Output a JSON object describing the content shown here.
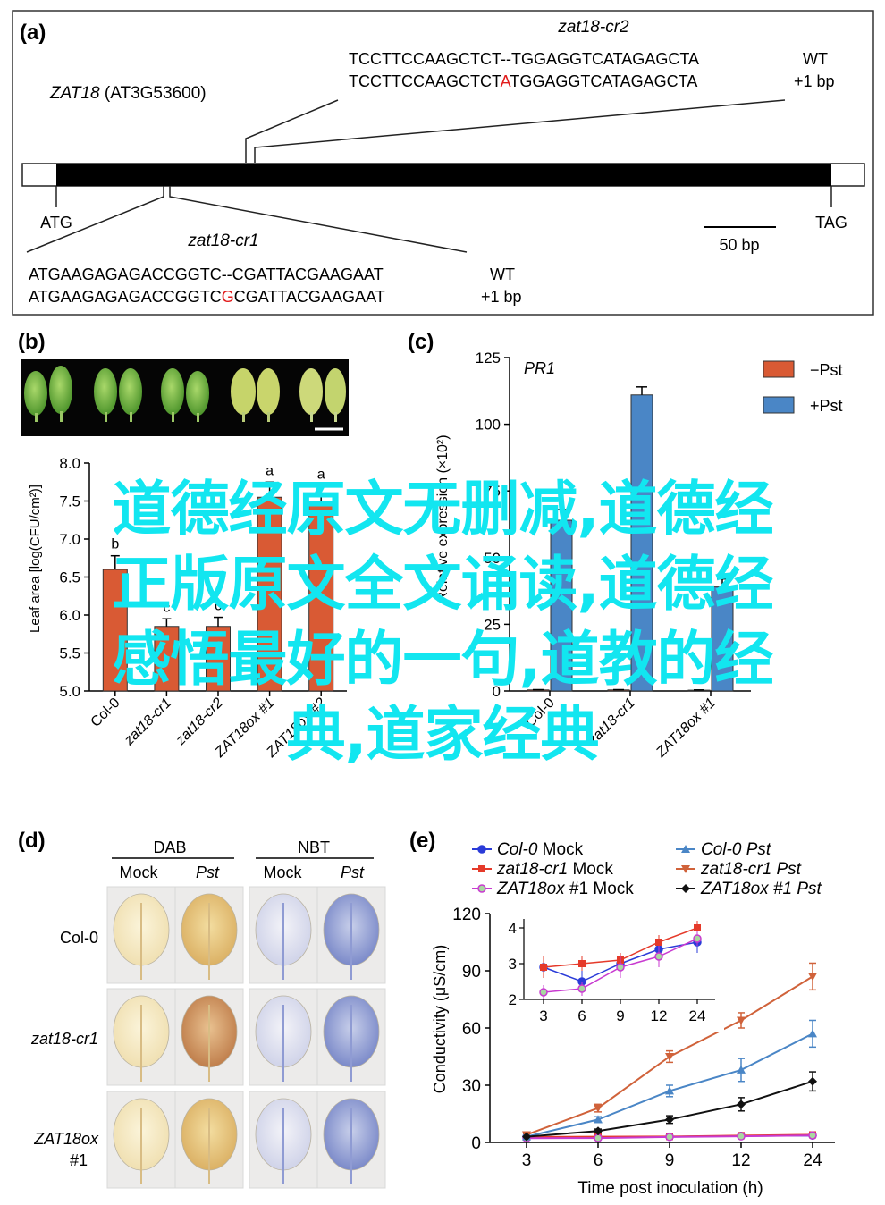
{
  "colors": {
    "minus_pst": "#d95a34",
    "plus_pst": "#4a86c6",
    "col0_mock": "#2a3bd8",
    "zat18cr1_mock": "#e53a2a",
    "zat18ox_mock": "#c83ad0",
    "col0_pst": "#4a86c6",
    "zat18cr1_pst": "#d0623a",
    "zat18ox_pst": "#111111",
    "mutation": "#e21b1b",
    "watermark": "#12e6f0"
  },
  "panel_a": {
    "label": "(a)",
    "gene": "ZAT18",
    "locus": " (AT3G53600)",
    "start_codon": "ATG",
    "stop_codon": "TAG",
    "scale_bar": "50 bp",
    "cr2": {
      "name": "zat18-cr2",
      "wt_seq": "TCCTTCCAAGCTCT--TGGAGGTCATAGAGCTA",
      "mut_seq_pre": "TCCTTCCAAGCTCT",
      "mut_base": "A",
      "mut_seq_post": "TGGAGGTCATAGAGCTA",
      "wt_label": "WT",
      "mut_label": "+1 bp"
    },
    "cr1": {
      "name": "zat18-cr1",
      "wt_seq": "ATGAAGAGAGACCGGTC--CGATTACGAAGAAT",
      "mut_seq_pre": "ATGAAGAGAGACCGGTC",
      "mut_base": "G",
      "mut_seq_post": "CGATTACGAAGAAT",
      "wt_label": "WT",
      "mut_label": "+1 bp"
    }
  },
  "panel_b": {
    "label": "(b)",
    "ylabel": "Leaf area [log(CFU/cm²)]",
    "chart_data": {
      "type": "bar",
      "categories": [
        "Col-0",
        "zat18-cr1",
        "zat18-cr2",
        "ZAT18ox #1",
        "ZAT18ox #2"
      ],
      "values": [
        6.6,
        5.85,
        5.85,
        7.55,
        7.45
      ],
      "errors": [
        0.18,
        0.1,
        0.12,
        0.2,
        0.25
      ],
      "significance": [
        "b",
        "c",
        "c",
        "a",
        "a"
      ],
      "ylim": [
        5.0,
        8.0
      ],
      "yticks": [
        "5.0",
        "5.5",
        "6.0",
        "6.5",
        "7.0",
        "7.5",
        "8.0"
      ]
    }
  },
  "panel_c": {
    "label": "(c)",
    "gene": "PR1",
    "ylabel": "Relative expression (×10²)",
    "legend": [
      {
        "key": "minus",
        "label": "−Pst"
      },
      {
        "key": "plus",
        "label": "+Pst"
      }
    ],
    "chart_data": {
      "type": "bar",
      "categories": [
        "Col-0",
        "zat18-cr1",
        "ZAT18ox #1"
      ],
      "series": [
        {
          "name": "−Pst",
          "values": [
            0.4,
            0.4,
            0.3
          ],
          "errors": [
            0.1,
            0.1,
            0.1
          ]
        },
        {
          "name": "+Pst",
          "values": [
            64,
            111,
            39
          ],
          "errors": [
            4,
            3,
            3
          ]
        }
      ],
      "ylim": [
        0,
        125
      ],
      "yticks": [
        "0",
        "25",
        "50",
        "75",
        "100",
        "125"
      ]
    }
  },
  "panel_d": {
    "label": "(d)",
    "groups": [
      "DAB",
      "NBT"
    ],
    "columns": [
      "Mock",
      "Pst",
      "Mock",
      "Pst"
    ],
    "rows": [
      "Col-0",
      "zat18-cr1",
      "ZAT18ox",
      "#1"
    ]
  },
  "panel_e": {
    "label": "(e)",
    "xlabel": "Time post inoculation (h)",
    "ylabel": "Conductivity (μS/cm)",
    "legend": [
      {
        "geno": "Col-0",
        "treat": " Mock",
        "italic_treat": false
      },
      {
        "geno": "Col-0 ",
        "treat": "Pst",
        "italic_treat": true
      },
      {
        "geno": "zat18-cr1",
        "treat": " Mock",
        "italic_treat": false
      },
      {
        "geno": "zat18-cr1 ",
        "treat": "Pst",
        "italic_treat": true
      },
      {
        "geno": "ZAT18ox",
        "treat": " #1 Mock",
        "italic_treat": false
      },
      {
        "geno": "ZAT18ox",
        "treat": " #1 Pst",
        "italic_treat": true
      }
    ],
    "chart_data": {
      "type": "line",
      "x": [
        "3",
        "6",
        "9",
        "12",
        "24"
      ],
      "ylim": [
        0,
        120
      ],
      "yticks": [
        "0",
        "30",
        "60",
        "90",
        "120"
      ],
      "series": [
        {
          "name": "Col-0 Mock",
          "values": [
            2.9,
            2.5,
            3.0,
            3.4,
            3.6
          ],
          "errors": [
            0.3,
            0.3,
            0.3,
            0.3,
            0.3
          ]
        },
        {
          "name": "zat18-cr1 Mock",
          "values": [
            2.9,
            3.0,
            3.1,
            3.6,
            4.0
          ],
          "errors": [
            0.3,
            0.2,
            0.2,
            0.2,
            0.2
          ]
        },
        {
          "name": "ZAT18ox #1 Mock",
          "values": [
            2.2,
            2.3,
            2.9,
            3.2,
            3.7
          ],
          "errors": [
            0.2,
            0.2,
            0.3,
            0.3,
            0.2
          ]
        },
        {
          "name": "Col-0 Pst",
          "values": [
            3,
            12,
            27,
            38,
            57
          ],
          "errors": [
            1,
            1.5,
            3,
            6,
            7
          ]
        },
        {
          "name": "zat18-cr1 Pst",
          "values": [
            4,
            18,
            45,
            64,
            87
          ],
          "errors": [
            1,
            2,
            3,
            4,
            7
          ]
        },
        {
          "name": "ZAT18ox #1 Pst",
          "values": [
            3,
            6,
            12,
            20,
            32
          ],
          "errors": [
            0.5,
            1,
            2,
            3.5,
            5
          ]
        }
      ],
      "inset": {
        "x": [
          "3",
          "6",
          "9",
          "12",
          "24"
        ],
        "ylim": [
          2,
          4
        ],
        "yticks": [
          "2",
          "3",
          "4"
        ]
      }
    }
  },
  "watermark_lines": [
    "道德经原文无删减,道德经",
    "正版原文全文诵读,道德经",
    "感悟最好的一句,道教的经",
    "典,道家经典"
  ]
}
